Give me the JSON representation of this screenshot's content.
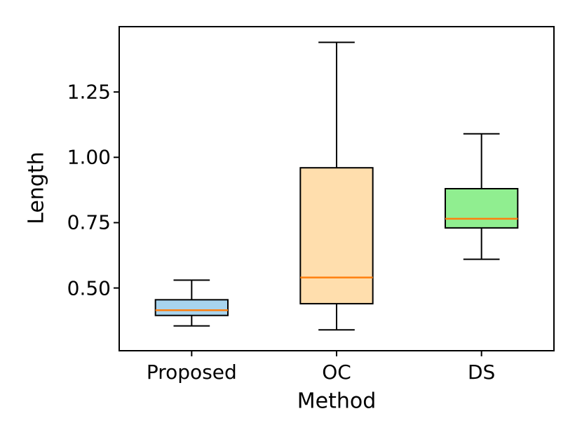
{
  "chart_data": {
    "type": "boxplot",
    "title": "",
    "xlabel": "Method",
    "ylabel": "Length",
    "categories": [
      "Proposed",
      "OC",
      "DS"
    ],
    "yticks": [
      0.5,
      0.75,
      1.0,
      1.25
    ],
    "ylim": [
      0.26,
      1.5
    ],
    "grid": false,
    "legend": "none",
    "series": [
      {
        "name": "Proposed",
        "whisker_low": 0.355,
        "q1": 0.395,
        "median": 0.415,
        "q3": 0.455,
        "whisker_high": 0.53,
        "fill": "#A8D4EE"
      },
      {
        "name": "OC",
        "whisker_low": 0.34,
        "q1": 0.44,
        "median": 0.54,
        "q3": 0.96,
        "whisker_high": 1.44,
        "fill": "#FFDEAD"
      },
      {
        "name": "DS",
        "whisker_low": 0.61,
        "q1": 0.73,
        "median": 0.765,
        "q3": 0.88,
        "whisker_high": 1.09,
        "fill": "#90EE90"
      }
    ],
    "median_color": "#FF7F0E",
    "line_color": "#000000",
    "background_color": "#FFFFFF"
  }
}
